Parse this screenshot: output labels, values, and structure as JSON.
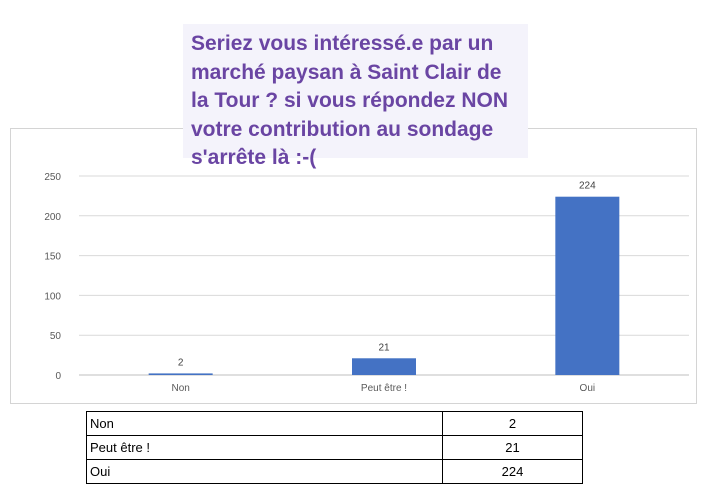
{
  "chart_data": {
    "type": "bar",
    "title": "Seriez vous intéressé.e par un\nmarché paysan à Saint Clair de\nla Tour ? si vous répondez NON\nvotre contribution au sondage\ns'arrête là :-(",
    "categories": [
      "Non",
      "Peut être !",
      "Oui"
    ],
    "values": [
      2,
      21,
      224
    ],
    "ylim": [
      0,
      250
    ],
    "yticks": [
      0,
      50,
      100,
      150,
      200,
      250
    ],
    "grid": true,
    "data_labels": true,
    "bar_color": "#4472c4"
  },
  "table": {
    "rows": [
      {
        "label": "Non",
        "value": "2"
      },
      {
        "label": "Peut être !",
        "value": "21"
      },
      {
        "label": "Oui",
        "value": "224"
      }
    ]
  }
}
